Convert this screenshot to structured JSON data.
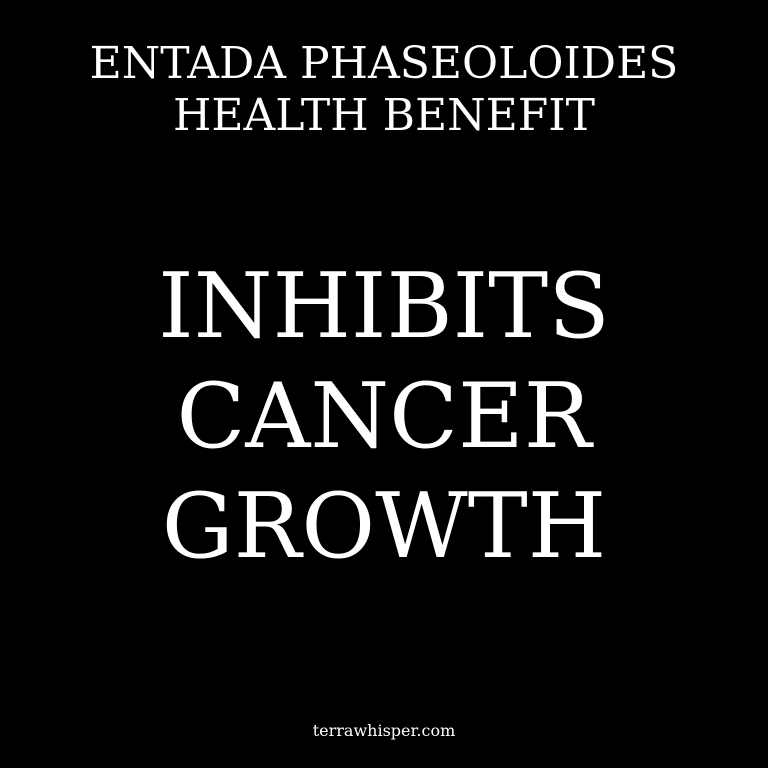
{
  "header": {
    "line1": "ENTADA PHASEOLOIDES",
    "line2": "HEALTH BENEFIT"
  },
  "headline": {
    "line1": "INHIBITS",
    "line2": "CANCER",
    "line3": "GROWTH"
  },
  "footer": {
    "site": "terrawhisper.com"
  },
  "colors": {
    "background": "#000000",
    "text": "#ffffff"
  }
}
